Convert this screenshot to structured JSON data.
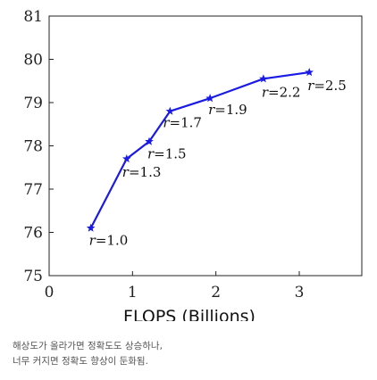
{
  "chart_data": {
    "type": "line",
    "title": "",
    "xlabel": "FLOPS (Billions)",
    "ylabel": "",
    "xlim": [
      0,
      3.75
    ],
    "ylim": [
      75,
      81
    ],
    "xticks": [
      0,
      1,
      2,
      3
    ],
    "yticks": [
      75,
      76,
      77,
      78,
      79,
      80,
      81
    ],
    "grid": false,
    "color": "#1a1ae6",
    "series": [
      {
        "values": [
          {
            "x": 0.5,
            "y": 76.1,
            "label": "r=1.0"
          },
          {
            "x": 0.93,
            "y": 77.7,
            "label": "r=1.3"
          },
          {
            "x": 1.2,
            "y": 78.1,
            "label": "r=1.5"
          },
          {
            "x": 1.45,
            "y": 78.8,
            "label": "r=1.7"
          },
          {
            "x": 1.93,
            "y": 79.1,
            "label": "r=1.9"
          },
          {
            "x": 2.57,
            "y": 79.55,
            "label": "r=2.2"
          },
          {
            "x": 3.12,
            "y": 79.7,
            "label": "r=2.5"
          }
        ]
      }
    ]
  },
  "caption": {
    "line1": "해상도가 올라가면 정확도도 상승하나,",
    "line2": "너무 커지면 정확도 향상이 둔화됨."
  }
}
